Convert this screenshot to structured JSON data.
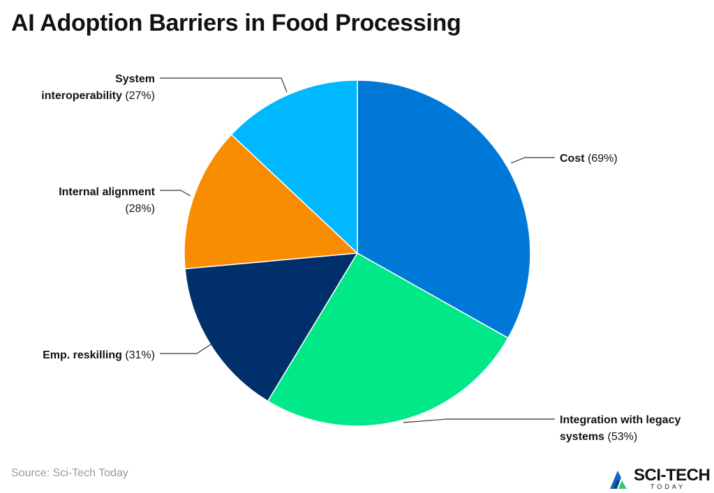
{
  "header": {
    "title": "AI Adoption Barriers in Food Processing"
  },
  "footer": {
    "source": "Source: Sci-Tech Today"
  },
  "logo": {
    "name": "SCI-TECH",
    "sub": "TODAY",
    "colors": [
      "#1565c0",
      "#2ecc71",
      "#111111"
    ]
  },
  "chart_data": {
    "type": "pie",
    "start_angle_deg": 0,
    "direction": "clockwise",
    "slices": [
      {
        "label": "Cost",
        "value": 69,
        "display": "(69%)",
        "color": "#0078d7"
      },
      {
        "label": "Integration with legacy systems",
        "label_lines": [
          "Integration with legacy",
          "systems"
        ],
        "value": 53,
        "display": "(53%)",
        "color": "#00e887"
      },
      {
        "label": "Emp. reskilling",
        "value": 31,
        "display": "(31%)",
        "color": "#002f6c"
      },
      {
        "label": "Internal alignment",
        "value": 28,
        "display": "(28%)",
        "color": "#f98c00"
      },
      {
        "label": "System interoperability",
        "label_lines": [
          "System",
          "interoperability"
        ],
        "value": 27,
        "display": "(27%)",
        "color": "#00b8ff"
      }
    ]
  }
}
